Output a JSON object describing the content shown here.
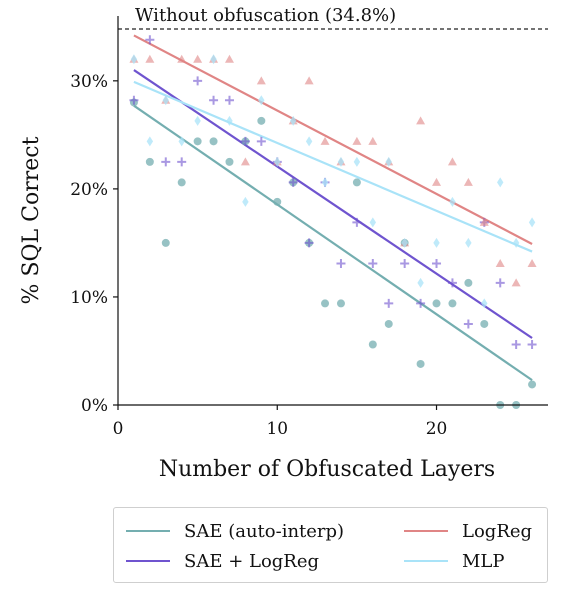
{
  "chart_data": {
    "type": "scatter",
    "xlabel": "Number of Obfuscated Layers",
    "ylabel": "% SQL Correct",
    "xlim": [
      0,
      27
    ],
    "ylim": [
      0,
      36
    ],
    "x_ticks": [
      "0",
      "10",
      "20"
    ],
    "y_ticks": [
      "0%",
      "10%",
      "20%",
      "30%"
    ],
    "reference_line": {
      "value": 34.8,
      "label": "Without obfuscation (34.8%)",
      "style": "dashed"
    },
    "legend_position": "bottom",
    "series": [
      {
        "name": "SAE (auto-interp)",
        "color": "#74aeb0",
        "marker": "circle",
        "points": [
          [
            1,
            28.0
          ],
          [
            2,
            22.5
          ],
          [
            3,
            15.0
          ],
          [
            4,
            20.6
          ],
          [
            5,
            24.4
          ],
          [
            6,
            24.4
          ],
          [
            7,
            22.5
          ],
          [
            8,
            24.4
          ],
          [
            9,
            26.3
          ],
          [
            10,
            18.8
          ],
          [
            11,
            20.6
          ],
          [
            12,
            15.0
          ],
          [
            13,
            9.4
          ],
          [
            14,
            9.4
          ],
          [
            15,
            20.6
          ],
          [
            16,
            5.6
          ],
          [
            17,
            7.5
          ],
          [
            18,
            15.0
          ],
          [
            19,
            3.8
          ],
          [
            20,
            9.4
          ],
          [
            21,
            9.4
          ],
          [
            22,
            11.3
          ],
          [
            23,
            7.5
          ],
          [
            24,
            0
          ],
          [
            25,
            0
          ],
          [
            26,
            1.9
          ]
        ],
        "fit": [
          [
            1,
            27.7
          ],
          [
            26,
            2.3
          ]
        ]
      },
      {
        "name": "SAE + LogReg",
        "color": "#6f54cf",
        "marker": "plus",
        "points": [
          [
            1,
            28.2
          ],
          [
            2,
            33.8
          ],
          [
            3,
            22.5
          ],
          [
            4,
            22.5
          ],
          [
            5,
            30.0
          ],
          [
            6,
            28.2
          ],
          [
            7,
            28.2
          ],
          [
            8,
            24.4
          ],
          [
            9,
            24.4
          ],
          [
            10,
            22.5
          ],
          [
            11,
            20.6
          ],
          [
            12,
            15.0
          ],
          [
            13,
            20.6
          ],
          [
            14,
            13.1
          ],
          [
            15,
            16.9
          ],
          [
            16,
            13.1
          ],
          [
            17,
            9.4
          ],
          [
            18,
            13.1
          ],
          [
            19,
            9.4
          ],
          [
            20,
            13.1
          ],
          [
            21,
            11.3
          ],
          [
            22,
            7.5
          ],
          [
            23,
            16.9
          ],
          [
            24,
            11.3
          ],
          [
            25,
            5.6
          ],
          [
            26,
            5.6
          ]
        ],
        "fit": [
          [
            1,
            31.0
          ],
          [
            26,
            6.2
          ]
        ]
      },
      {
        "name": "LogReg",
        "color": "#e08585",
        "marker": "triangle",
        "points": [
          [
            1,
            32.0
          ],
          [
            2,
            32.0
          ],
          [
            3,
            28.2
          ],
          [
            4,
            32.0
          ],
          [
            5,
            32.0
          ],
          [
            6,
            32.0
          ],
          [
            7,
            32.0
          ],
          [
            8,
            22.5
          ],
          [
            9,
            30.0
          ],
          [
            10,
            22.5
          ],
          [
            11,
            26.3
          ],
          [
            12,
            30.0
          ],
          [
            13,
            24.4
          ],
          [
            14,
            22.5
          ],
          [
            15,
            24.4
          ],
          [
            16,
            24.4
          ],
          [
            17,
            22.5
          ],
          [
            18,
            15.0
          ],
          [
            19,
            26.3
          ],
          [
            20,
            20.6
          ],
          [
            21,
            22.5
          ],
          [
            22,
            20.6
          ],
          [
            23,
            16.9
          ],
          [
            24,
            13.1
          ],
          [
            25,
            11.3
          ],
          [
            26,
            13.1
          ]
        ],
        "fit": [
          [
            1,
            34.2
          ],
          [
            26,
            14.9
          ]
        ]
      },
      {
        "name": "MLP",
        "color": "#a9e3f8",
        "marker": "diamond",
        "points": [
          [
            1,
            32.0
          ],
          [
            2,
            24.4
          ],
          [
            3,
            28.2
          ],
          [
            4,
            24.4
          ],
          [
            5,
            26.3
          ],
          [
            6,
            32.0
          ],
          [
            7,
            26.3
          ],
          [
            8,
            18.8
          ],
          [
            9,
            28.2
          ],
          [
            10,
            22.5
          ],
          [
            11,
            26.3
          ],
          [
            12,
            24.4
          ],
          [
            13,
            20.6
          ],
          [
            14,
            22.5
          ],
          [
            15,
            22.5
          ],
          [
            16,
            16.9
          ],
          [
            17,
            22.5
          ],
          [
            18,
            15.0
          ],
          [
            19,
            11.3
          ],
          [
            20,
            15.0
          ],
          [
            21,
            18.8
          ],
          [
            22,
            15.0
          ],
          [
            23,
            9.4
          ],
          [
            24,
            20.6
          ],
          [
            25,
            15.0
          ],
          [
            26,
            16.9
          ]
        ],
        "fit": [
          [
            1,
            29.9
          ],
          [
            26,
            14.2
          ]
        ]
      }
    ]
  }
}
